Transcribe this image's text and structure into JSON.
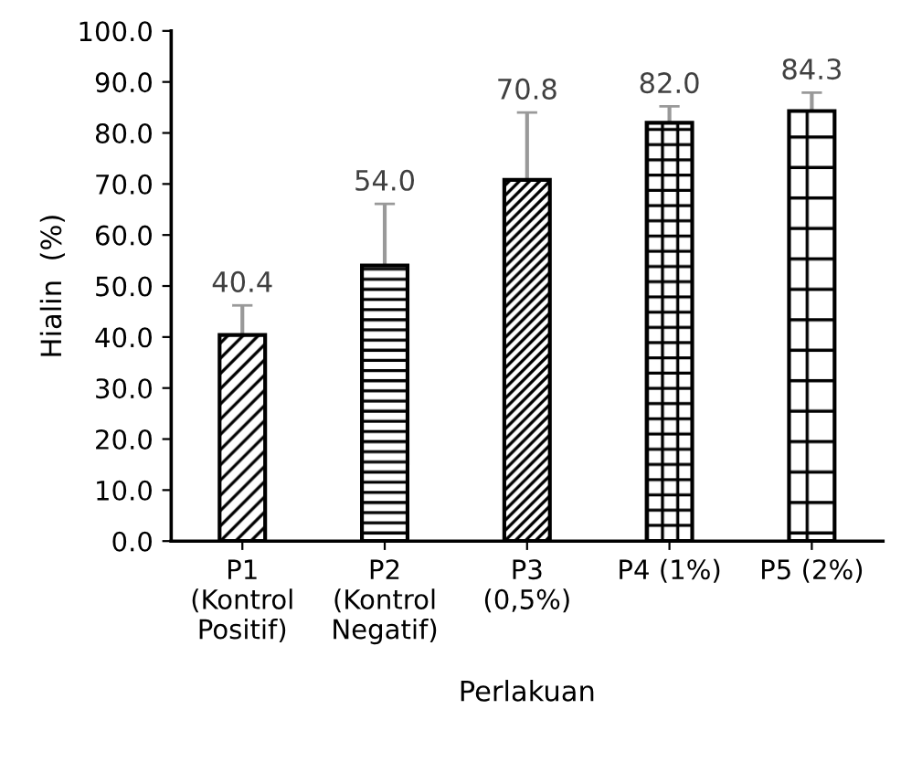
{
  "chart_data": {
    "type": "bar",
    "xlabel": "Perlakuan",
    "ylabel": "Hialin  (%)",
    "categories": [
      "P1\n(Kontrol\nPositif)",
      "P2\n(Kontrol\nNegatif)",
      "P3\n(0,5%)",
      "P4 (1%)",
      "P5 (2%)"
    ],
    "values": [
      40.4,
      54.0,
      70.8,
      82.0,
      84.3
    ],
    "value_labels": [
      "40.4",
      "54.0",
      "70.8",
      "82.0",
      "84.3"
    ],
    "errors": [
      [
        40.4,
        46.2
      ],
      [
        54.0,
        66.1
      ],
      [
        70.8,
        84.0
      ],
      [
        82.0,
        85.2
      ],
      [
        84.3,
        87.9
      ]
    ],
    "color": "#000000",
    "ylim": [
      0,
      100
    ],
    "yticks": [
      {
        "value": 0,
        "label": "0.0"
      },
      {
        "value": 10,
        "label": "10.0"
      },
      {
        "value": 20,
        "label": "20.0"
      },
      {
        "value": 30,
        "label": "30.0"
      },
      {
        "value": 40,
        "label": "40.0"
      },
      {
        "value": 50,
        "label": "50.0"
      },
      {
        "value": 60,
        "label": "60.0"
      },
      {
        "value": 70,
        "label": "70.0"
      },
      {
        "value": 80,
        "label": "80.0"
      },
      {
        "value": 90,
        "label": "90.0"
      },
      {
        "value": 100,
        "label": "100.0"
      }
    ],
    "grid": false
  }
}
